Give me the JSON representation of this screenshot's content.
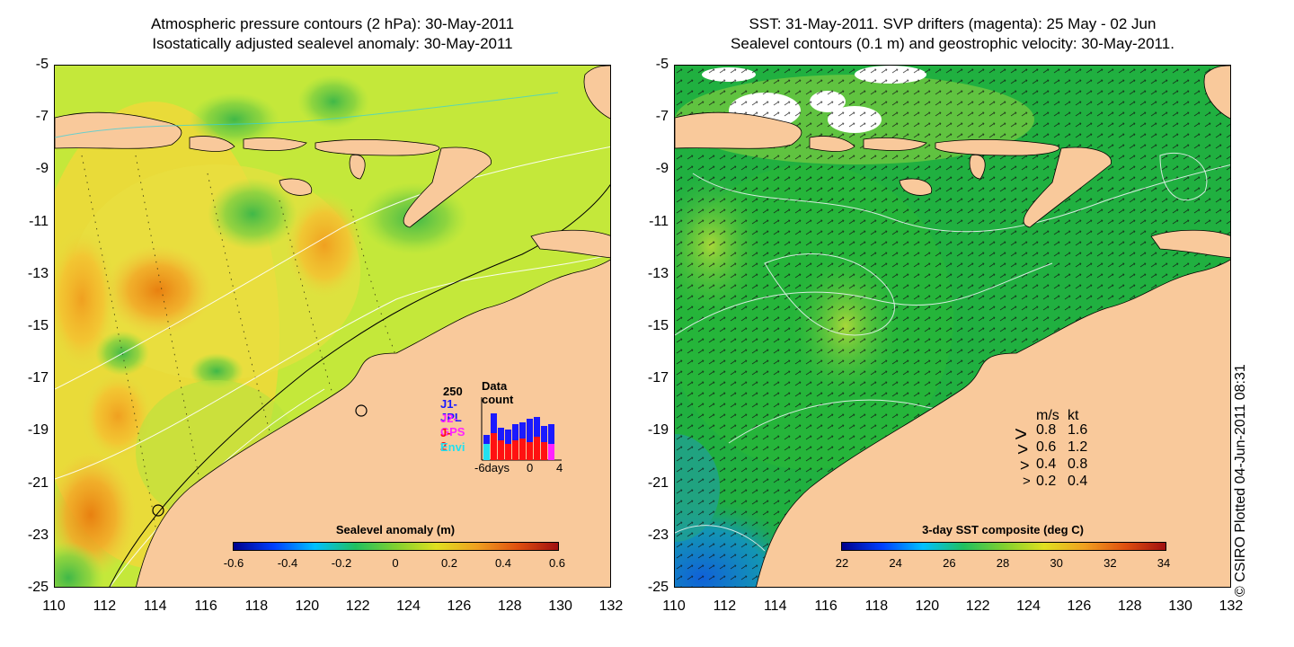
{
  "left_map": {
    "title_line1": "Atmospheric pressure contours (2 hPa): 30-May-2011",
    "title_line2": "Isostatically adjusted sealevel anomaly: 30-May-2011",
    "colorbar_label": "Sealevel anomaly (m)",
    "colorbar_ticks": [
      "-0.6",
      "-0.4",
      "-0.2",
      "0",
      "0.2",
      "0.4",
      "0.6"
    ],
    "inset": {
      "title": "Data count",
      "y_max": "250",
      "series": [
        {
          "name": "J1-JPL",
          "color": "#1a1aff"
        },
        {
          "name": "J2-GPS",
          "color": "#ff22ff"
        },
        {
          "name": "J-2",
          "color": "#ff1111"
        },
        {
          "name": "Envi",
          "color": "#22e0f0"
        }
      ],
      "x_labels": [
        "-6days",
        "0",
        "4"
      ]
    }
  },
  "right_map": {
    "title_line1": "SST: 31-May-2011. SVP drifters (magenta): 25 May - 02 Jun",
    "title_line2": "Sealevel contours (0.1 m) and geostrophic velocity: 30-May-2011.",
    "colorbar_label": "3-day SST composite (deg C)",
    "colorbar_ticks": [
      "22",
      "24",
      "26",
      "28",
      "30",
      "32",
      "34"
    ],
    "velocity_legend": {
      "header_ms": "m/s",
      "header_kt": "kt",
      "rows": [
        {
          "ms": "0.8",
          "kt": "1.6"
        },
        {
          "ms": "0.6",
          "kt": "1.2"
        },
        {
          "ms": "0.4",
          "kt": "0.8"
        },
        {
          "ms": "0.2",
          "kt": "0.4"
        }
      ]
    }
  },
  "axes": {
    "y_ticks": [
      "-5",
      "-7",
      "-9",
      "-11",
      "-13",
      "-15",
      "-17",
      "-19",
      "-21",
      "-23",
      "-25"
    ],
    "x_ticks": [
      "110",
      "112",
      "114",
      "116",
      "118",
      "120",
      "122",
      "124",
      "126",
      "128",
      "130",
      "132"
    ]
  },
  "credit": "© CSIRO Plotted 04-Jun-2011 08:31",
  "colors": {
    "land": "#f9c99b",
    "ssh_base": "#c4e83a",
    "sst_base": "#20b040"
  }
}
